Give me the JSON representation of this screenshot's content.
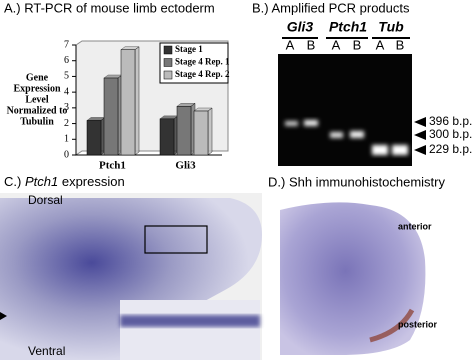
{
  "chart_data": {
    "type": "bar",
    "title": "A.) RT-PCR of mouse limb ectoderm",
    "ylabel": [
      "Gene",
      "Expression",
      "Level",
      "Normalized to",
      "Tubulin"
    ],
    "categories": [
      "Ptch1",
      "Gli3"
    ],
    "series": [
      {
        "name": "Stage 1",
        "color": "#333333",
        "values": [
          2.2,
          2.3
        ]
      },
      {
        "name": "Stage 4 Rep. 1",
        "color": "#777777",
        "values": [
          4.9,
          3.1
        ]
      },
      {
        "name": "Stage 4 Rep. 2",
        "color": "#bbbbbb",
        "values": [
          6.7,
          2.8
        ]
      }
    ],
    "ylim": [
      0,
      7
    ],
    "yticks": [
      0,
      1,
      2,
      3,
      4,
      5,
      6,
      7
    ],
    "grid": false,
    "legend": "upper right"
  },
  "gel": {
    "title": "B.) Amplified PCR products",
    "genes": [
      "Gli3",
      "Ptch1",
      "Tub"
    ],
    "lanes": [
      "A",
      "B",
      "A",
      "B",
      "A",
      "B"
    ],
    "sizes": [
      "396 b.p.",
      "300 b.p.",
      "229 b.p."
    ]
  },
  "panel_c": {
    "label": "C.)",
    "gene": "Ptch1",
    "title": "expression",
    "dorsal": "Dorsal",
    "ventral": "Ventral"
  },
  "panel_d": {
    "title": "D.) Shh immunohistochemistry",
    "anterior": "anterior",
    "posterior": "posterior"
  }
}
